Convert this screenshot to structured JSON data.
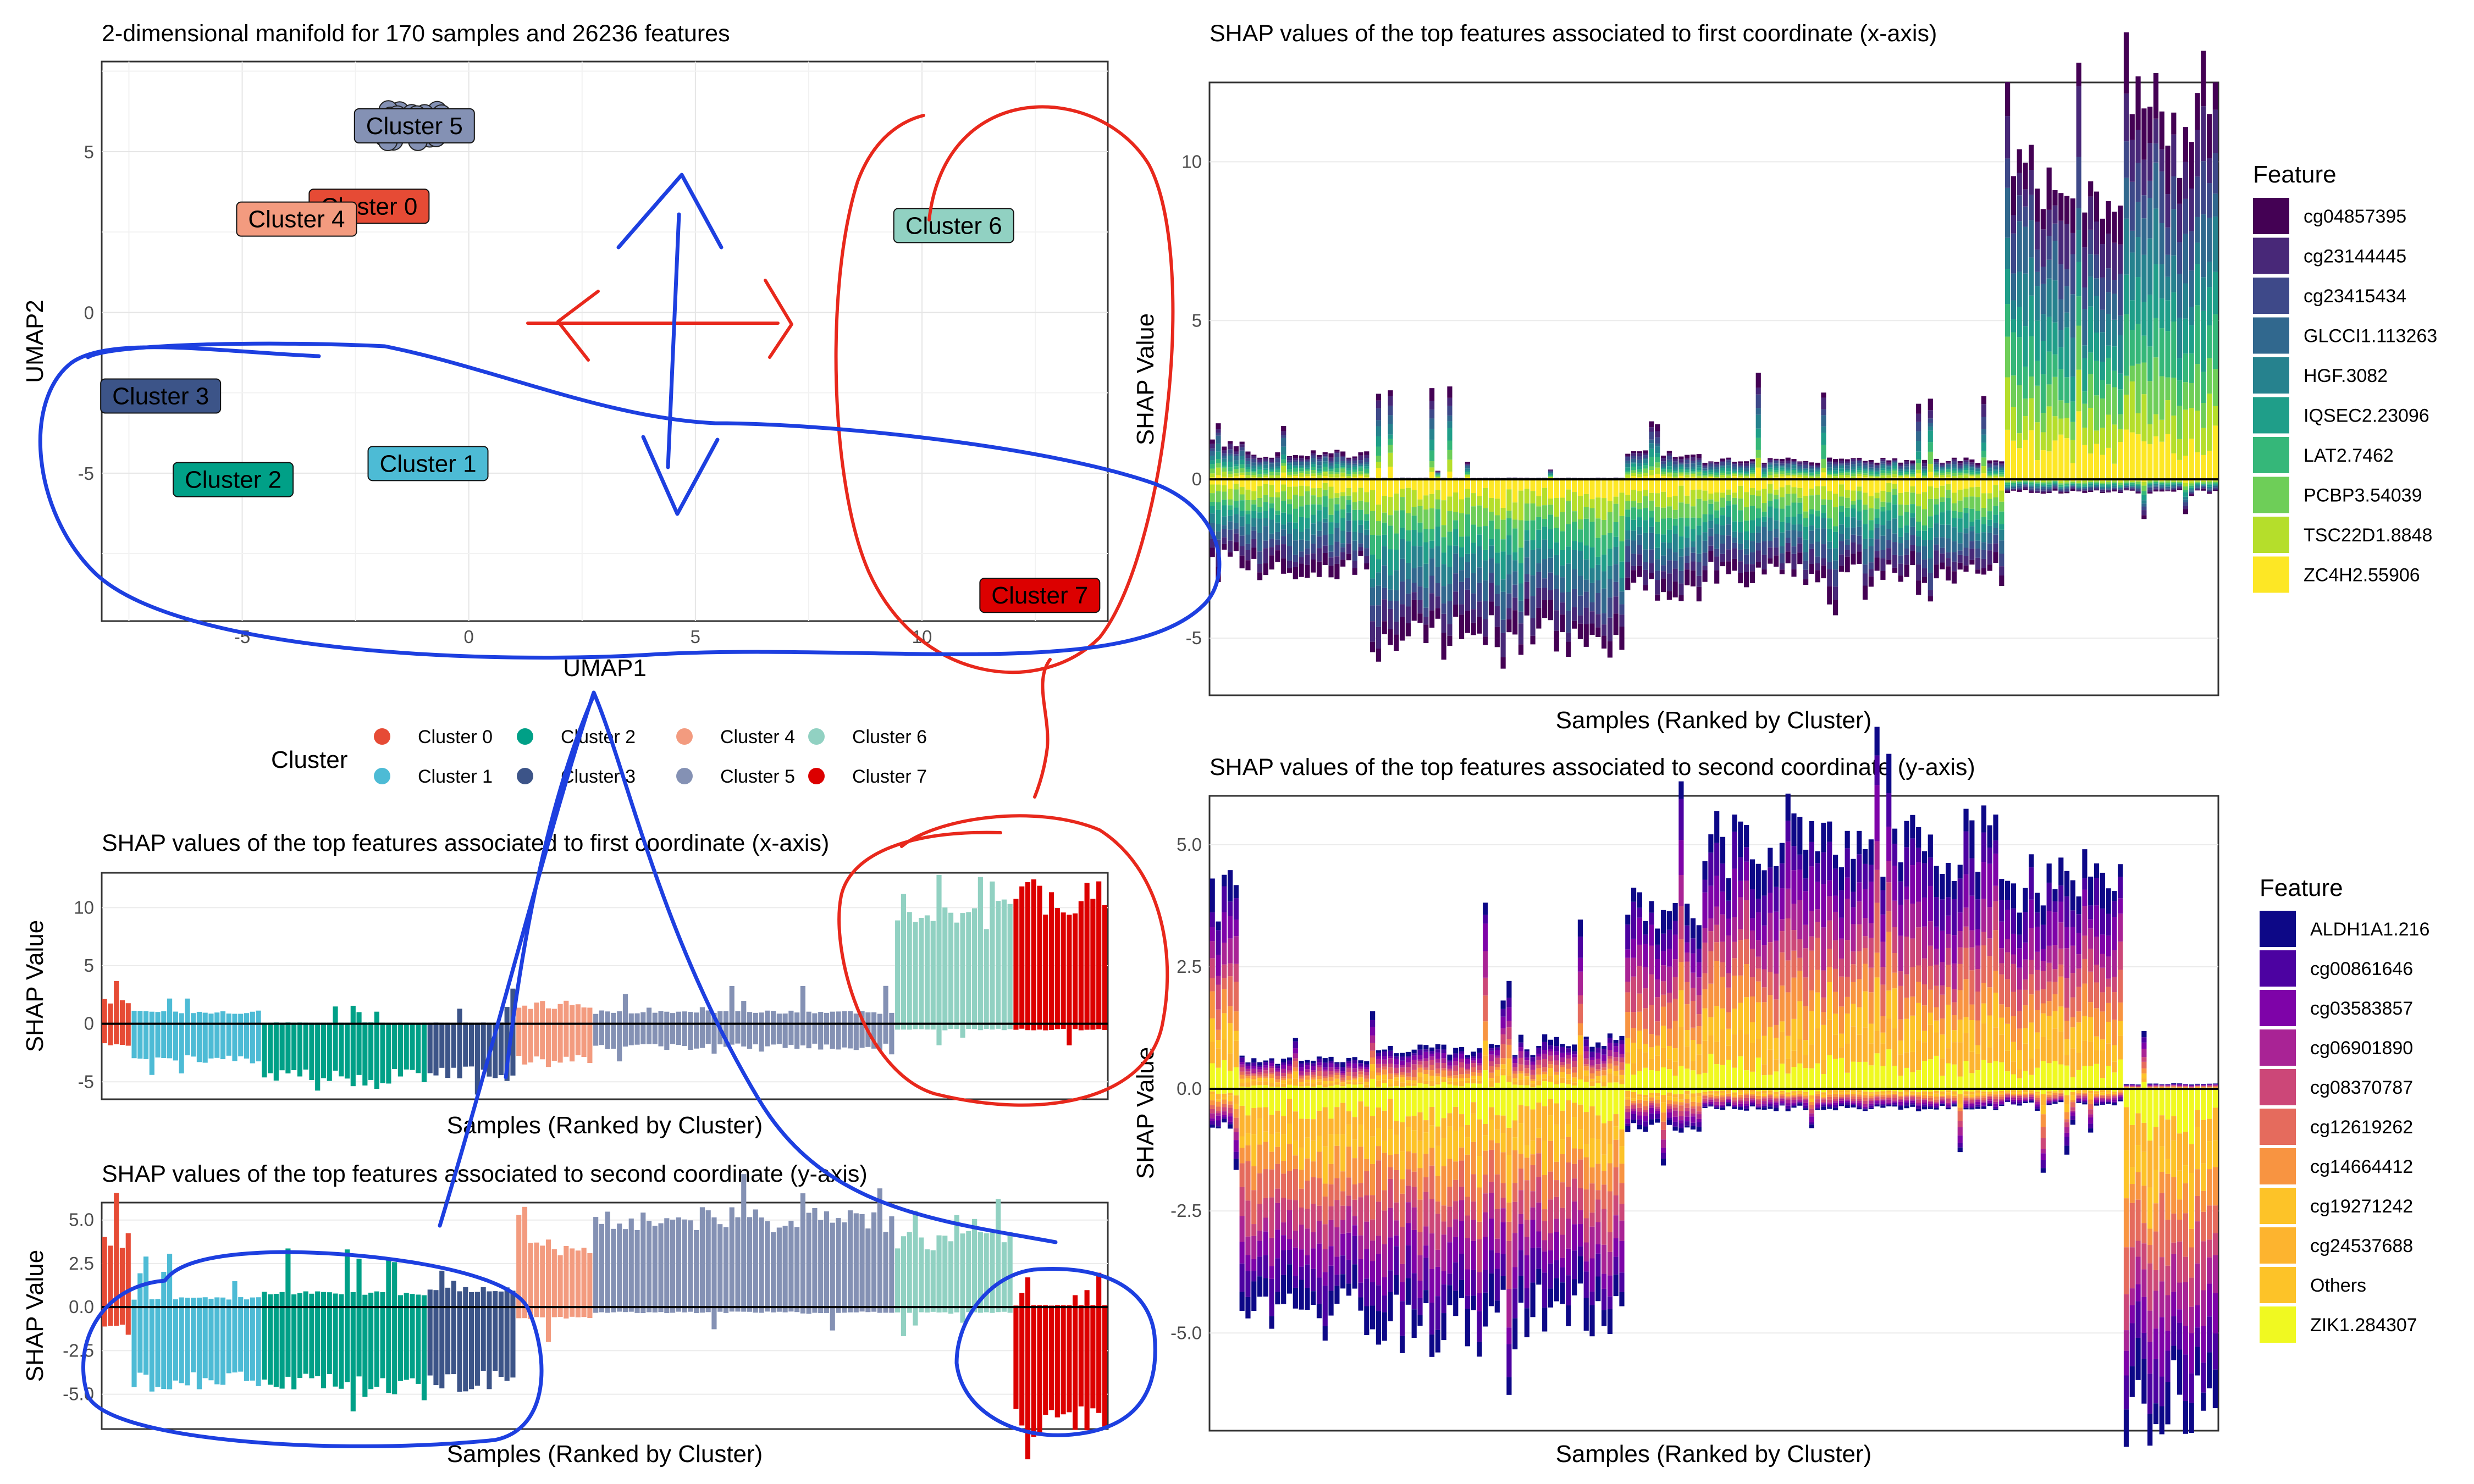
{
  "colors": {
    "clusters": {
      "Cluster 0": "#e64b35",
      "Cluster 1": "#4dbbd5",
      "Cluster 2": "#00a087",
      "Cluster 3": "#3c5488",
      "Cluster 4": "#f39b7f",
      "Cluster 5": "#8491b4",
      "Cluster 6": "#91d1c2",
      "Cluster 7": "#dc0000"
    },
    "viridis": [
      "#440154",
      "#482878",
      "#3e4989",
      "#31688e",
      "#26828e",
      "#1f9e89",
      "#35b779",
      "#6ece58",
      "#b5de2b",
      "#fde725"
    ],
    "plasma": [
      "#0d0887",
      "#4c02a1",
      "#7e03a8",
      "#a92395",
      "#cc4778",
      "#e56b5d",
      "#f89441",
      "#fdc328",
      "#fdb42f",
      "#f0f921"
    ]
  },
  "chart_data": [
    {
      "id": "umap",
      "type": "scatter",
      "title": "2-dimensional manifold for 170 samples and 26236 features",
      "xlabel": "UMAP1",
      "ylabel": "UMAP2",
      "xlim": [
        -8.1,
        14.1
      ],
      "ylim": [
        -9.6,
        7.8
      ],
      "xticks": [
        -5,
        0,
        5,
        10
      ],
      "yticks": [
        -5,
        0,
        5
      ],
      "grid": true,
      "legend": {
        "title": "Cluster",
        "position": "bottom",
        "entries": [
          "Cluster 0",
          "Cluster 1",
          "Cluster 2",
          "Cluster 3",
          "Cluster 4",
          "Cluster 5",
          "Cluster 6",
          "Cluster 7"
        ]
      },
      "cluster_centers": [
        {
          "cluster": "Cluster 0",
          "x": -2.2,
          "y": 3.3
        },
        {
          "cluster": "Cluster 1",
          "x": -0.9,
          "y": -4.7
        },
        {
          "cluster": "Cluster 2",
          "x": -5.2,
          "y": -5.2
        },
        {
          "cluster": "Cluster 3",
          "x": -6.8,
          "y": -2.6
        },
        {
          "cluster": "Cluster 4",
          "x": -3.8,
          "y": 2.9
        },
        {
          "cluster": "Cluster 5",
          "x": -1.2,
          "y": 5.8
        },
        {
          "cluster": "Cluster 6",
          "x": 10.7,
          "y": 2.7
        },
        {
          "cluster": "Cluster 7",
          "x": 12.6,
          "y": -8.8
        }
      ]
    },
    {
      "id": "shap_x_cluster",
      "type": "bar",
      "title": "SHAP values of the top features associated to first coordinate (x-axis)",
      "xlabel": "Samples (Ranked by Cluster)",
      "ylabel": "SHAP Value",
      "ylim": [
        -6.5,
        13
      ],
      "yticks": [
        -5,
        0,
        5,
        10
      ],
      "samples": 170,
      "cluster_order": [
        "Cluster 0",
        "Cluster 1",
        "Cluster 2",
        "Cluster 3",
        "Cluster 4",
        "Cluster 5",
        "Cluster 6",
        "Cluster 7"
      ],
      "cluster_counts": [
        5,
        22,
        28,
        15,
        13,
        51,
        20,
        16
      ],
      "cluster_pos_levels": [
        2.0,
        1.0,
        0.1,
        0.1,
        1.5,
        1.0,
        9.5,
        11.0
      ],
      "cluster_neg_levels": [
        -1.8,
        -3.0,
        -4.5,
        -4.3,
        -3.0,
        -2.0,
        -0.5,
        -0.5
      ]
    },
    {
      "id": "shap_y_cluster",
      "type": "bar",
      "title": "SHAP values of the top features associated to second coordinate (y-axis)",
      "xlabel": "Samples (Ranked by Cluster)",
      "ylabel": "SHAP Value",
      "ylim": [
        -7,
        6
      ],
      "yticks": [
        -5.0,
        -2.5,
        0.0,
        2.5,
        5.0
      ],
      "samples": 170,
      "cluster_order": [
        "Cluster 0",
        "Cluster 1",
        "Cluster 2",
        "Cluster 3",
        "Cluster 4",
        "Cluster 5",
        "Cluster 6",
        "Cluster 7"
      ],
      "cluster_counts": [
        5,
        22,
        28,
        15,
        13,
        51,
        20,
        16
      ],
      "cluster_pos_levels": [
        3.8,
        0.5,
        0.8,
        1.0,
        3.5,
        5.0,
        3.8,
        0.1
      ],
      "cluster_neg_levels": [
        -1.0,
        -4.2,
        -4.5,
        -4.3,
        -0.6,
        -0.3,
        -0.3,
        -6.5
      ]
    },
    {
      "id": "shap_x_feature",
      "type": "bar",
      "title": "SHAP values of the top features associated to first coordinate (x-axis)",
      "xlabel": "Samples (Ranked by Cluster)",
      "ylabel": "SHAP Value",
      "ylim": [
        -6.8,
        12.5
      ],
      "yticks": [
        -5,
        0,
        5,
        10
      ],
      "legend": {
        "title": "Feature",
        "position": "right",
        "entries": [
          "cg04857395",
          "cg23144445",
          "cg23415434",
          "GLCCI1.113263",
          "HGF.3082",
          "IQSEC2.23096",
          "LAT2.7462",
          "PCBP3.54039",
          "TSC22D1.8848",
          "ZC4H2.55906"
        ]
      },
      "samples": 170,
      "cluster_counts": [
        5,
        22,
        28,
        15,
        13,
        51,
        20,
        16
      ],
      "cluster_pos_levels": [
        1.2,
        0.8,
        0.05,
        0.05,
        0.8,
        0.6,
        9.5,
        11.0
      ],
      "cluster_neg_levels": [
        -2.5,
        -2.8,
        -5.0,
        -5.0,
        -3.5,
        -3.0,
        -0.4,
        -0.4
      ]
    },
    {
      "id": "shap_y_feature",
      "type": "bar",
      "title": "SHAP values of the top features associated to second coordinate (y-axis)",
      "xlabel": "Samples (Ranked by Cluster)",
      "ylabel": "SHAP Value",
      "ylim": [
        -7,
        6
      ],
      "yticks": [
        -5.0,
        -2.5,
        0.0,
        2.5,
        5.0
      ],
      "legend": {
        "title": "Feature",
        "position": "right",
        "entries": [
          "ALDH1A1.216",
          "cg00861646",
          "cg03583857",
          "cg06901890",
          "cg08370787",
          "cg12619262",
          "cg14664412",
          "cg19271242",
          "cg24537688",
          "Others",
          "ZIK1.284307"
        ]
      },
      "samples": 170,
      "cluster_counts": [
        5,
        22,
        28,
        15,
        13,
        51,
        20,
        16
      ],
      "cluster_pos_levels": [
        4.0,
        0.6,
        0.8,
        1.0,
        3.8,
        5.0,
        4.2,
        0.1
      ],
      "cluster_neg_levels": [
        -0.8,
        -4.6,
        -4.8,
        -4.5,
        -0.8,
        -0.4,
        -0.3,
        -6.5
      ]
    }
  ]
}
